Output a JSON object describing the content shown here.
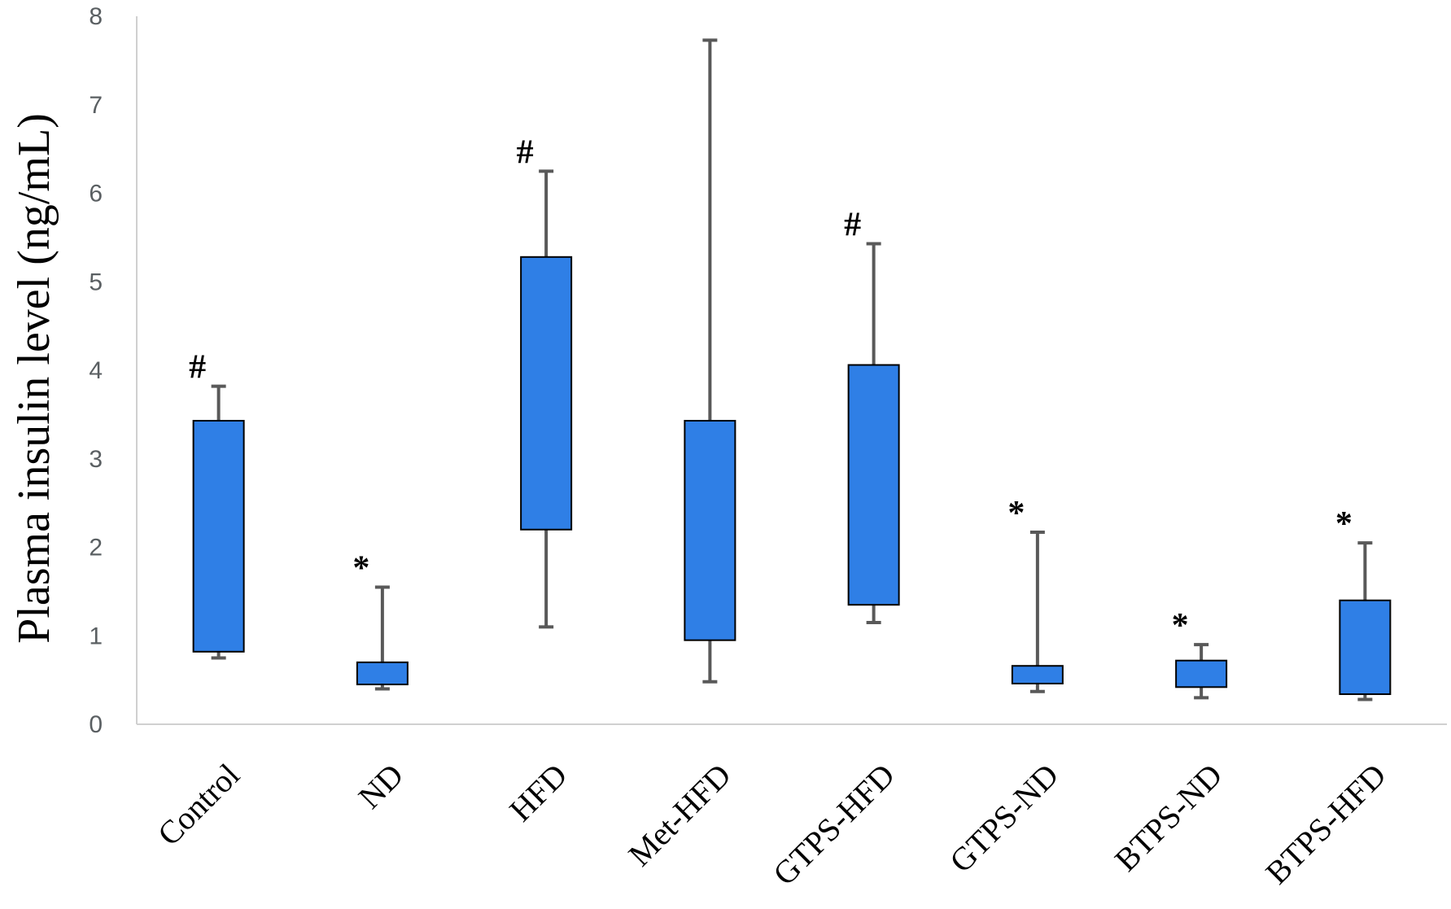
{
  "chart_data": {
    "type": "box",
    "title": "",
    "xlabel": "",
    "ylabel": "Plasma insulin level (ng/mL)",
    "ylim": [
      0,
      8
    ],
    "yticks": [
      0,
      1,
      2,
      3,
      4,
      5,
      6,
      7,
      8
    ],
    "grid": false,
    "legend": "none",
    "colors": {
      "box_fill": "#2f7fe6",
      "box_stroke": "#000000",
      "whisker": "#595959",
      "axis": "#d0d0d0"
    },
    "categories": [
      "Control",
      "ND",
      "HFD",
      "Met-HFD",
      "GTPS-HFD",
      "GTPS-ND",
      "BTPS-ND",
      "BTPS-HFD"
    ],
    "boxes": [
      {
        "category": "Control",
        "min": 0.75,
        "q1": 0.82,
        "q3": 3.43,
        "max": 3.82,
        "annotation": "#"
      },
      {
        "category": "ND",
        "min": 0.4,
        "q1": 0.45,
        "q3": 0.7,
        "max": 1.55,
        "annotation": "*"
      },
      {
        "category": "HFD",
        "min": 1.1,
        "q1": 2.2,
        "q3": 5.28,
        "max": 6.25,
        "annotation": "#"
      },
      {
        "category": "Met-HFD",
        "min": 0.48,
        "q1": 0.95,
        "q3": 3.43,
        "max": 7.73,
        "annotation": ""
      },
      {
        "category": "GTPS-HFD",
        "min": 1.15,
        "q1": 1.35,
        "q3": 4.06,
        "max": 5.43,
        "annotation": "#"
      },
      {
        "category": "GTPS-ND",
        "min": 0.37,
        "q1": 0.46,
        "q3": 0.66,
        "max": 2.17,
        "annotation": "*"
      },
      {
        "category": "BTPS-ND",
        "min": 0.3,
        "q1": 0.42,
        "q3": 0.72,
        "max": 0.9,
        "annotation": "*"
      },
      {
        "category": "BTPS-HFD",
        "min": 0.28,
        "q1": 0.34,
        "q3": 1.4,
        "max": 2.05,
        "annotation": "*"
      }
    ]
  }
}
